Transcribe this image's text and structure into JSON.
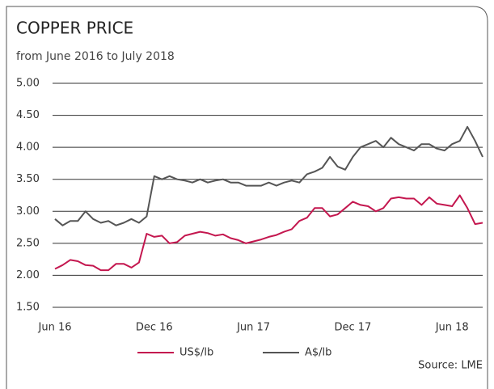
{
  "chart_data": {
    "type": "line",
    "title": "COPPER PRICE",
    "subtitle": "from June 2016 to July 2018",
    "source": "Source: LME",
    "categories": [
      "Jun 16",
      null,
      null,
      null,
      null,
      null,
      null,
      null,
      null,
      null,
      null,
      null,
      null,
      "Dec 16",
      null,
      null,
      null,
      null,
      null,
      null,
      null,
      null,
      null,
      null,
      null,
      null,
      "Jun 17",
      null,
      null,
      null,
      null,
      null,
      null,
      null,
      null,
      null,
      null,
      null,
      null,
      "Dec 17",
      null,
      null,
      null,
      null,
      null,
      null,
      null,
      null,
      null,
      null,
      null,
      null,
      "Jun 18",
      null,
      null,
      null,
      null
    ],
    "series": [
      {
        "name": "US$/lb",
        "color": "#c4174f",
        "values": [
          2.1,
          2.16,
          2.24,
          2.22,
          2.16,
          2.15,
          2.08,
          2.08,
          2.18,
          2.18,
          2.12,
          2.2,
          2.65,
          2.6,
          2.62,
          2.5,
          2.52,
          2.62,
          2.65,
          2.68,
          2.66,
          2.62,
          2.64,
          2.58,
          2.55,
          2.5,
          2.53,
          2.56,
          2.6,
          2.63,
          2.68,
          2.72,
          2.85,
          2.9,
          3.05,
          3.05,
          2.92,
          2.95,
          3.05,
          3.15,
          3.1,
          3.08,
          3.0,
          3.05,
          3.2,
          3.22,
          3.2,
          3.2,
          3.1,
          3.22,
          3.12,
          3.1,
          3.08,
          3.25,
          3.05,
          2.8,
          2.82
        ]
      },
      {
        "name": "A$/lb",
        "color": "#555555",
        "values": [
          2.88,
          2.78,
          2.85,
          2.85,
          3.0,
          2.88,
          2.82,
          2.85,
          2.78,
          2.82,
          2.88,
          2.82,
          2.92,
          3.55,
          3.5,
          3.55,
          3.5,
          3.48,
          3.45,
          3.5,
          3.45,
          3.48,
          3.5,
          3.45,
          3.45,
          3.4,
          3.4,
          3.4,
          3.45,
          3.4,
          3.45,
          3.48,
          3.45,
          3.58,
          3.62,
          3.68,
          3.85,
          3.7,
          3.65,
          3.85,
          4.0,
          4.05,
          4.1,
          4.0,
          4.15,
          4.05,
          4.0,
          3.95,
          4.05,
          4.05,
          3.98,
          3.95,
          4.05,
          4.1,
          4.32,
          4.1,
          3.85
        ]
      }
    ],
    "ylim": [
      1.5,
      5.0
    ],
    "yticks": [
      {
        "value": 1.5,
        "label": "1.50"
      },
      {
        "value": 2.0,
        "label": "2.00"
      },
      {
        "value": 2.5,
        "label": "2.50"
      },
      {
        "value": 3.0,
        "label": "3.00"
      },
      {
        "value": 3.5,
        "label": "3.50"
      },
      {
        "value": 4.0,
        "label": "4.00"
      },
      {
        "value": 4.5,
        "label": "4.50"
      },
      {
        "value": 5.0,
        "label": "5.00"
      }
    ],
    "grid": true,
    "legend": "bottom"
  }
}
